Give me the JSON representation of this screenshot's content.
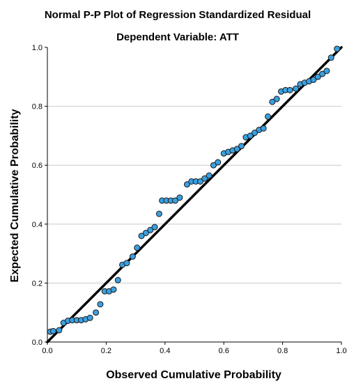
{
  "chart_data": {
    "type": "scatter",
    "title": "Normal P-P Plot of Regression Standardized Residual",
    "subtitle": "Dependent Variable: ATT",
    "xlabel": "Observed Cumulative Probability",
    "ylabel": "Expected Cumulative Probability",
    "xlim": [
      0,
      1
    ],
    "ylim": [
      0,
      1
    ],
    "xticks": [
      "0.0",
      "0.2",
      "0.4",
      "0.6",
      "0.8",
      "1.0"
    ],
    "yticks": [
      "0.0",
      "0.2",
      "0.4",
      "0.6",
      "0.8",
      "1.0"
    ],
    "grid": "horizontal",
    "reference_line": [
      [
        0,
        0
      ],
      [
        1,
        1
      ]
    ],
    "colors": {
      "point_fill": "#3aa0e0",
      "point_stroke": "#1a1a1a",
      "line": "#000000",
      "grid": "#c8c8c8"
    },
    "points": [
      [
        0.01,
        0.035
      ],
      [
        0.02,
        0.037
      ],
      [
        0.04,
        0.04
      ],
      [
        0.055,
        0.065
      ],
      [
        0.07,
        0.072
      ],
      [
        0.085,
        0.074
      ],
      [
        0.1,
        0.074
      ],
      [
        0.115,
        0.074
      ],
      [
        0.13,
        0.077
      ],
      [
        0.145,
        0.082
      ],
      [
        0.165,
        0.1
      ],
      [
        0.18,
        0.128
      ],
      [
        0.195,
        0.172
      ],
      [
        0.21,
        0.172
      ],
      [
        0.225,
        0.178
      ],
      [
        0.24,
        0.21
      ],
      [
        0.255,
        0.262
      ],
      [
        0.27,
        0.268
      ],
      [
        0.29,
        0.29
      ],
      [
        0.305,
        0.32
      ],
      [
        0.32,
        0.36
      ],
      [
        0.335,
        0.37
      ],
      [
        0.35,
        0.38
      ],
      [
        0.365,
        0.39
      ],
      [
        0.38,
        0.435
      ],
      [
        0.39,
        0.48
      ],
      [
        0.405,
        0.48
      ],
      [
        0.42,
        0.48
      ],
      [
        0.435,
        0.48
      ],
      [
        0.45,
        0.49
      ],
      [
        0.475,
        0.535
      ],
      [
        0.49,
        0.545
      ],
      [
        0.505,
        0.545
      ],
      [
        0.52,
        0.545
      ],
      [
        0.535,
        0.555
      ],
      [
        0.55,
        0.565
      ],
      [
        0.565,
        0.6
      ],
      [
        0.58,
        0.61
      ],
      [
        0.6,
        0.64
      ],
      [
        0.615,
        0.645
      ],
      [
        0.63,
        0.65
      ],
      [
        0.645,
        0.655
      ],
      [
        0.66,
        0.665
      ],
      [
        0.675,
        0.695
      ],
      [
        0.69,
        0.7
      ],
      [
        0.705,
        0.71
      ],
      [
        0.72,
        0.72
      ],
      [
        0.735,
        0.725
      ],
      [
        0.75,
        0.765
      ],
      [
        0.765,
        0.815
      ],
      [
        0.78,
        0.825
      ],
      [
        0.795,
        0.85
      ],
      [
        0.81,
        0.855
      ],
      [
        0.825,
        0.855
      ],
      [
        0.845,
        0.86
      ],
      [
        0.86,
        0.875
      ],
      [
        0.875,
        0.88
      ],
      [
        0.89,
        0.885
      ],
      [
        0.905,
        0.89
      ],
      [
        0.92,
        0.9
      ],
      [
        0.935,
        0.91
      ],
      [
        0.95,
        0.92
      ],
      [
        0.965,
        0.965
      ],
      [
        0.985,
        0.995
      ]
    ]
  }
}
